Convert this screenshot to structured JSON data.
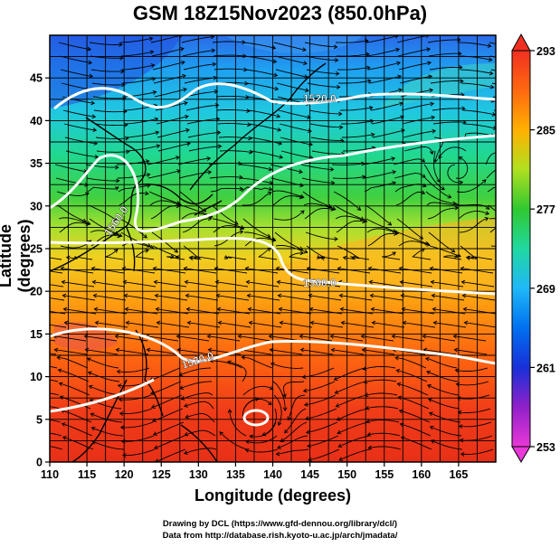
{
  "title": "GSM 18Z15Nov2023 (850.0hPa)",
  "axes": {
    "xlabel": "Longitude (degrees)",
    "ylabel": "Latitude  (degrees)",
    "xticks": [
      "110",
      "115",
      "120",
      "125",
      "130",
      "135",
      "140",
      "145",
      "150",
      "155",
      "160",
      "165"
    ],
    "yticks": [
      "0",
      "5",
      "10",
      "15",
      "20",
      "25",
      "30",
      "35",
      "40",
      "45"
    ],
    "xlim": [
      110,
      170
    ],
    "ylim": [
      0,
      50
    ]
  },
  "colorbar": {
    "ticks": [
      "253",
      "261",
      "269",
      "277",
      "285",
      "293"
    ],
    "range": [
      253,
      293
    ],
    "colors": [
      "#e040d8",
      "#6010c0",
      "#0030e0",
      "#0080ff",
      "#20c0ff",
      "#20e0a0",
      "#30d030",
      "#a0e020",
      "#f0e020",
      "#ffb000",
      "#ff7000",
      "#f03020"
    ]
  },
  "contours": [
    {
      "label": "1520.0"
    },
    {
      "label": "1560.0"
    },
    {
      "label": "1560.0"
    },
    {
      "label": "1520.0"
    }
  ],
  "credits": {
    "line1": "Drawing by DCL (https://www.gfd-dennou.org/library/dcl/)",
    "line2": "Data from http://database.rish.kyoto-u.ac.jp/arch/jmadata/"
  }
}
